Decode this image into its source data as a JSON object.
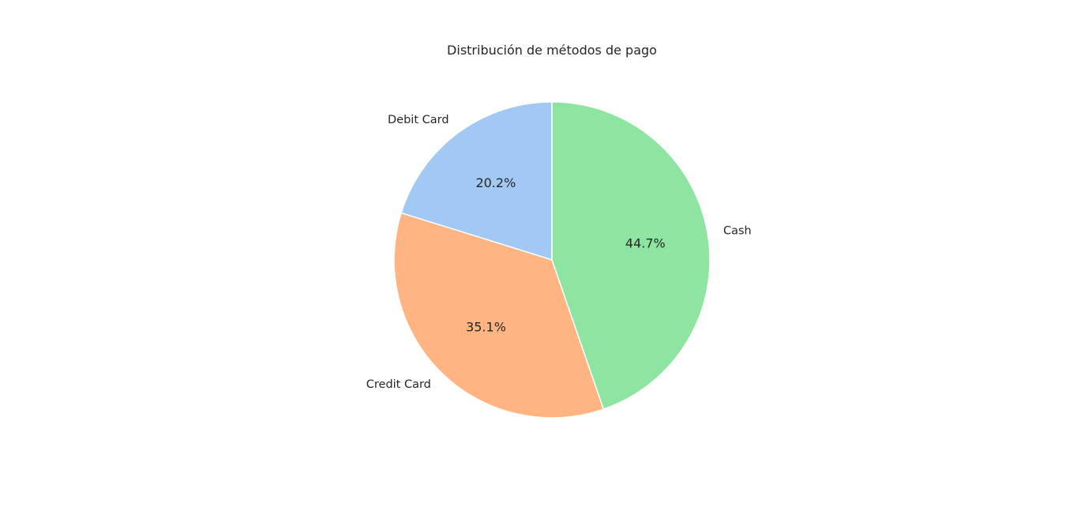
{
  "chart_data": {
    "type": "pie",
    "title": "Distribución de métodos de pago",
    "start_angle_deg": 90,
    "direction": "counterclockwise",
    "slices": [
      {
        "label": "Debit Card",
        "value": 20.2,
        "pct_label": "20.2%",
        "color": "#a1c9f4"
      },
      {
        "label": "Credit Card",
        "value": 35.1,
        "pct_label": "35.1%",
        "color": "#ffb482"
      },
      {
        "label": "Cash",
        "value": 44.7,
        "pct_label": "44.7%",
        "color": "#8de5a1"
      }
    ]
  }
}
